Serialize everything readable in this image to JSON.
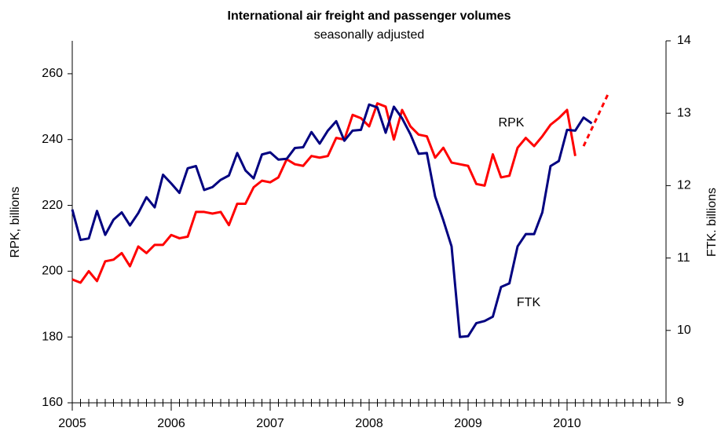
{
  "chart_data": {
    "type": "line",
    "title": "International air freight and passenger volumes",
    "subtitle": "seasonally adjusted",
    "y_label": "RPK, billions",
    "y2_label": "FTK. billions",
    "xlim": [
      2005,
      2011
    ],
    "xticks": [
      2005,
      2006,
      2007,
      2008,
      2009,
      2010
    ],
    "ylim": [
      160,
      270
    ],
    "yticks": [
      160,
      180,
      200,
      220,
      240,
      260
    ],
    "y2lim": [
      9,
      14
    ],
    "y2ticks": [
      9,
      10,
      11,
      12,
      13,
      14
    ],
    "grid": false,
    "series": [
      {
        "name": "RPK",
        "color": "#ff0000",
        "axis": "y",
        "x": [
          2005,
          2005.083,
          2005.167,
          2005.25,
          2005.333,
          2005.417,
          2005.5,
          2005.583,
          2005.667,
          2005.75,
          2005.833,
          2005.917,
          2006,
          2006.083,
          2006.167,
          2006.25,
          2006.333,
          2006.417,
          2006.5,
          2006.583,
          2006.667,
          2006.75,
          2006.833,
          2006.917,
          2007,
          2007.083,
          2007.167,
          2007.25,
          2007.333,
          2007.417,
          2007.5,
          2007.583,
          2007.667,
          2007.75,
          2007.833,
          2007.917,
          2008,
          2008.083,
          2008.167,
          2008.25,
          2008.333,
          2008.417,
          2008.5,
          2008.583,
          2008.667,
          2008.75,
          2008.833,
          2008.917,
          2009,
          2009.083,
          2009.167,
          2009.25,
          2009.333,
          2009.417,
          2009.5,
          2009.583,
          2009.667,
          2009.75,
          2009.833,
          2009.917,
          2010,
          2010.083
        ],
        "values": [
          197.5,
          196.5,
          200,
          197,
          203,
          203.5,
          205.5,
          201.5,
          207.5,
          205.5,
          208,
          208,
          211,
          210,
          210.5,
          218,
          218,
          217.5,
          218,
          214,
          220.5,
          220.5,
          225.5,
          227.5,
          227,
          228.5,
          234,
          232.5,
          232,
          235,
          234.5,
          235,
          240.5,
          240,
          247.5,
          246.5,
          244,
          251,
          250,
          240,
          249,
          244,
          241.5,
          241,
          234.5,
          237.5,
          233,
          232.5,
          232,
          226.5,
          226,
          235.5,
          228.5,
          229,
          237.5,
          240.5,
          238,
          241,
          244.5,
          246.5,
          249,
          235
        ]
      },
      {
        "color": "#ff0000",
        "axis": "y",
        "dashed": true,
        "x": [
          2010.167,
          2010.417
        ],
        "values": [
          238,
          254
        ]
      },
      {
        "name": "FTK",
        "color": "#000080",
        "axis": "y2",
        "x": [
          2005,
          2005.083,
          2005.167,
          2005.25,
          2005.333,
          2005.417,
          2005.5,
          2005.583,
          2005.667,
          2005.75,
          2005.833,
          2005.917,
          2006,
          2006.083,
          2006.167,
          2006.25,
          2006.333,
          2006.417,
          2006.5,
          2006.583,
          2006.667,
          2006.75,
          2006.833,
          2006.917,
          2007,
          2007.083,
          2007.167,
          2007.25,
          2007.333,
          2007.417,
          2007.5,
          2007.583,
          2007.667,
          2007.75,
          2007.833,
          2007.917,
          2008,
          2008.083,
          2008.167,
          2008.25,
          2008.333,
          2008.417,
          2008.5,
          2008.583,
          2008.667,
          2008.75,
          2008.833,
          2008.917,
          2009,
          2009.083,
          2009.167,
          2009.25,
          2009.333,
          2009.417,
          2009.5,
          2009.583,
          2009.667,
          2009.75,
          2009.833,
          2009.917,
          2010,
          2010.083,
          2010.167,
          2010.25
        ],
        "values": [
          11.67,
          11.25,
          11.27,
          11.65,
          11.32,
          11.53,
          11.63,
          11.45,
          11.62,
          11.84,
          11.7,
          12.15,
          12.03,
          11.9,
          12.24,
          12.27,
          11.94,
          11.98,
          12.08,
          12.14,
          12.45,
          12.21,
          12.1,
          12.43,
          12.46,
          12.36,
          12.37,
          12.52,
          12.53,
          12.74,
          12.58,
          12.76,
          12.89,
          12.62,
          12.76,
          12.77,
          13.12,
          13.08,
          12.73,
          13.09,
          12.93,
          12.71,
          12.44,
          12.45,
          11.85,
          11.52,
          11.16,
          9.91,
          9.92,
          10.1,
          10.13,
          10.19,
          10.6,
          10.65,
          11.16,
          11.33,
          11.33,
          11.63,
          12.27,
          12.34,
          12.77,
          12.76,
          12.94,
          12.86
        ]
      }
    ]
  }
}
